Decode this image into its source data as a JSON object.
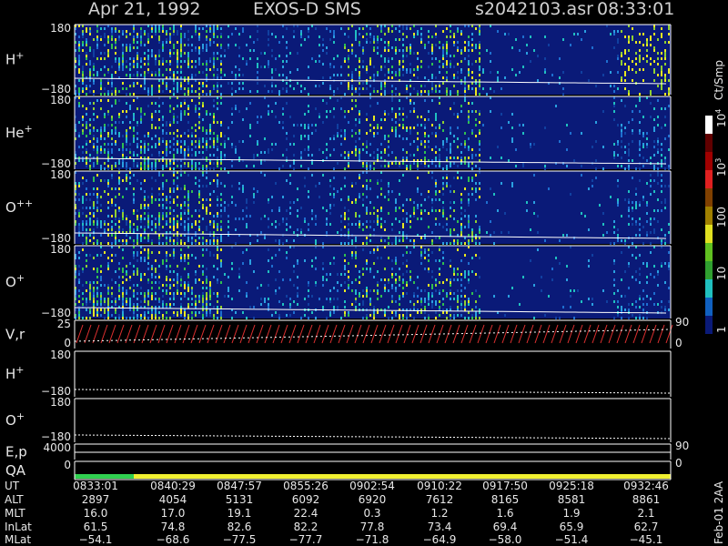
{
  "header": {
    "date": "Apr 21, 1992",
    "instrument": "EXOS-D SMS",
    "file": "s2042103.asr",
    "time": "08:33:01"
  },
  "panels": [
    {
      "name": "H",
      "charge": "+",
      "ticks": [
        "180",
        "−180"
      ]
    },
    {
      "name": "He",
      "charge": "+",
      "ticks": [
        "180",
        "−180"
      ]
    },
    {
      "name": "O",
      "charge": "++",
      "ticks": [
        "180",
        "−180"
      ]
    },
    {
      "name": "O",
      "charge": "+",
      "ticks": [
        "180",
        "−180"
      ]
    },
    {
      "name": "V,r",
      "ticks": [
        "25",
        "0"
      ],
      "right_ticks": [
        "90",
        "0"
      ]
    },
    {
      "name": "H",
      "charge": "+",
      "ticks": [
        "180",
        "−180"
      ]
    },
    {
      "name": "O",
      "charge": "+",
      "ticks": [
        "180",
        "−180"
      ]
    },
    {
      "name": "E,p",
      "ticks": [
        "4000"
      ],
      "right_ticks": [
        "90"
      ]
    },
    {
      "name": "QA",
      "ticks": [
        "0"
      ],
      "right_ticks": [
        "0"
      ]
    }
  ],
  "colorbar": {
    "unit": "Ct/Smp",
    "ticks": [
      {
        "text": "10",
        "sup": "4"
      },
      {
        "text": "10",
        "sup": "3"
      },
      {
        "text": "100"
      },
      {
        "text": "10"
      },
      {
        "text": "1"
      }
    ]
  },
  "table": {
    "rows": [
      {
        "label": "UT",
        "values": [
          "0833:01",
          "0840:29",
          "0847:57",
          "0855:26",
          "0902:54",
          "0910:22",
          "0917:50",
          "0925:18",
          "0932:46"
        ]
      },
      {
        "label": "ALT",
        "values": [
          "2897",
          "4054",
          "5131",
          "6092",
          "6920",
          "7612",
          "8165",
          "8581",
          "8861"
        ]
      },
      {
        "label": "MLT",
        "values": [
          "16.0",
          "17.0",
          "19.1",
          "22.4",
          "0.3",
          "1.2",
          "1.6",
          "1.9",
          "2.1"
        ]
      },
      {
        "label": "InLat",
        "values": [
          "61.5",
          "74.8",
          "82.6",
          "82.2",
          "77.8",
          "73.4",
          "69.4",
          "65.9",
          "62.7"
        ]
      },
      {
        "label": "MLat",
        "values": [
          "−54.1",
          "−68.6",
          "−77.5",
          "−77.7",
          "−71.8",
          "−64.9",
          "−58.0",
          "−51.4",
          "−45.1"
        ]
      }
    ]
  },
  "footnote": "Feb-01 2AA"
}
